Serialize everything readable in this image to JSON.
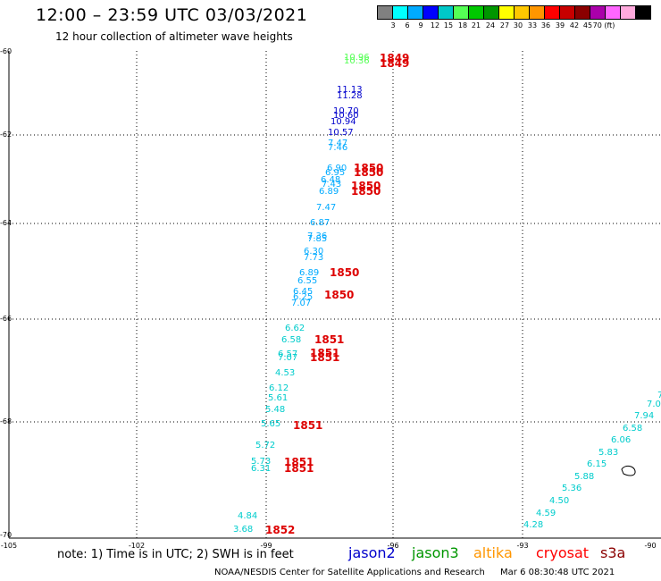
{
  "header": {
    "title": "12:00 – 23:59 UTC 03/03/2021",
    "subtitle": "12 hour collection of altimeter wave heights"
  },
  "legend": {
    "colors": [
      "#808080",
      "#00ffff",
      "#00aaff",
      "#0000ff",
      "#00c8c8",
      "#55ff55",
      "#00c800",
      "#009600",
      "#ffff00",
      "#ffc800",
      "#ff9600",
      "#ff0000",
      "#c80000",
      "#8b0000",
      "#aa00aa",
      "#ff66ff",
      "#ffaadd",
      "#000000"
    ],
    "labels": [
      "3",
      "6",
      "9",
      "12",
      "15",
      "18",
      "21",
      "24",
      "27",
      "30",
      "33",
      "36",
      "39",
      "42",
      "45",
      "70 (ft)"
    ]
  },
  "map": {
    "lat_labels": [
      "-60",
      "-62",
      "-64",
      "-66",
      "-68",
      "-70"
    ],
    "lon_labels": [
      "-105",
      "-102",
      "-99",
      "-96",
      "-93",
      "-90"
    ]
  },
  "notes": {
    "note": "note: 1) Time is in UTC; 2) SWH is in feet",
    "satellites": [
      {
        "name": "jason2",
        "color": "#0000cc"
      },
      {
        "name": "jason3",
        "color": "#009600"
      },
      {
        "name": "altika",
        "color": "#ff9600"
      },
      {
        "name": "cryosat",
        "color": "#ff0000"
      },
      {
        "name": "s3a",
        "color": "#8b0000"
      }
    ],
    "footer_left": "NOAA/NESDIS Center for Satellite Applications and Research",
    "footer_right": "Mar  6 08:30:48 UTC 2021"
  },
  "observations": [
    {
      "v": "10.96",
      "c": "#55ff55"
    },
    {
      "v": "10.36",
      "c": "#55ff55"
    },
    {
      "v": "11.13",
      "c": "#0000cc"
    },
    {
      "v": "11.28",
      "c": "#0000cc"
    },
    {
      "v": "10.70",
      "c": "#0000cc"
    },
    {
      "v": "10.60",
      "c": "#0000cc"
    },
    {
      "v": "10.94",
      "c": "#0000cc"
    },
    {
      "v": "10.57",
      "c": "#0000cc"
    },
    {
      "v": "7.47",
      "c": "#00aaff"
    },
    {
      "v": "7.46",
      "c": "#00aaff"
    },
    {
      "v": "6.90",
      "c": "#00aaff"
    },
    {
      "v": "6.95",
      "c": "#00aaff"
    },
    {
      "v": "6.48",
      "c": "#00aaff"
    },
    {
      "v": "7.43",
      "c": "#00aaff"
    },
    {
      "v": "6.89",
      "c": "#00aaff"
    },
    {
      "v": "7.47",
      "c": "#00aaff"
    },
    {
      "v": "6.87",
      "c": "#00aaff"
    },
    {
      "v": "7.36",
      "c": "#00aaff"
    },
    {
      "v": "7.85",
      "c": "#00aaff"
    },
    {
      "v": "6.30",
      "c": "#00aaff"
    },
    {
      "v": "7.73",
      "c": "#00aaff"
    },
    {
      "v": "6.89",
      "c": "#00aaff"
    },
    {
      "v": "6.55",
      "c": "#00aaff"
    },
    {
      "v": "6.45",
      "c": "#00aaff"
    },
    {
      "v": "6.25",
      "c": "#00aaff"
    },
    {
      "v": "7.07",
      "c": "#00aaff"
    },
    {
      "v": "6.62",
      "c": "#00cccc"
    },
    {
      "v": "6.58",
      "c": "#00cccc"
    },
    {
      "v": "6.57",
      "c": "#00cccc"
    },
    {
      "v": "7.07",
      "c": "#00cccc"
    },
    {
      "v": "4.53",
      "c": "#00cccc"
    },
    {
      "v": "6.12",
      "c": "#00cccc"
    },
    {
      "v": "5.61",
      "c": "#00cccc"
    },
    {
      "v": "5.48",
      "c": "#00cccc"
    },
    {
      "v": "5.65",
      "c": "#00cccc"
    },
    {
      "v": "5.72",
      "c": "#00cccc"
    },
    {
      "v": "5.73",
      "c": "#00cccc"
    },
    {
      "v": "6.31",
      "c": "#00cccc"
    },
    {
      "v": "4.84",
      "c": "#00cccc"
    },
    {
      "v": "3.68",
      "c": "#00cccc"
    },
    {
      "v": "4.28",
      "c": "#00cccc"
    },
    {
      "v": "4.59",
      "c": "#00cccc"
    },
    {
      "v": "4.50",
      "c": "#00cccc"
    },
    {
      "v": "5.36",
      "c": "#00cccc"
    },
    {
      "v": "5.88",
      "c": "#00cccc"
    },
    {
      "v": "6.15",
      "c": "#00cccc"
    },
    {
      "v": "5.83",
      "c": "#00cccc"
    },
    {
      "v": "6.06",
      "c": "#00cccc"
    },
    {
      "v": "6.58",
      "c": "#00cccc"
    },
    {
      "v": "7.94",
      "c": "#00cccc"
    },
    {
      "v": "7.0",
      "c": "#00cccc"
    },
    {
      "v": "7",
      "c": "#00cccc"
    }
  ],
  "times": [
    {
      "t": "1849"
    },
    {
      "t": "1849"
    },
    {
      "t": "1850"
    },
    {
      "t": "1850"
    },
    {
      "t": "1850"
    },
    {
      "t": "1850"
    },
    {
      "t": "1850"
    },
    {
      "t": "1850"
    },
    {
      "t": "1851"
    },
    {
      "t": "1851"
    },
    {
      "t": "1851"
    },
    {
      "t": "1851"
    },
    {
      "t": "1851"
    },
    {
      "t": "1851"
    },
    {
      "t": "1852"
    }
  ]
}
